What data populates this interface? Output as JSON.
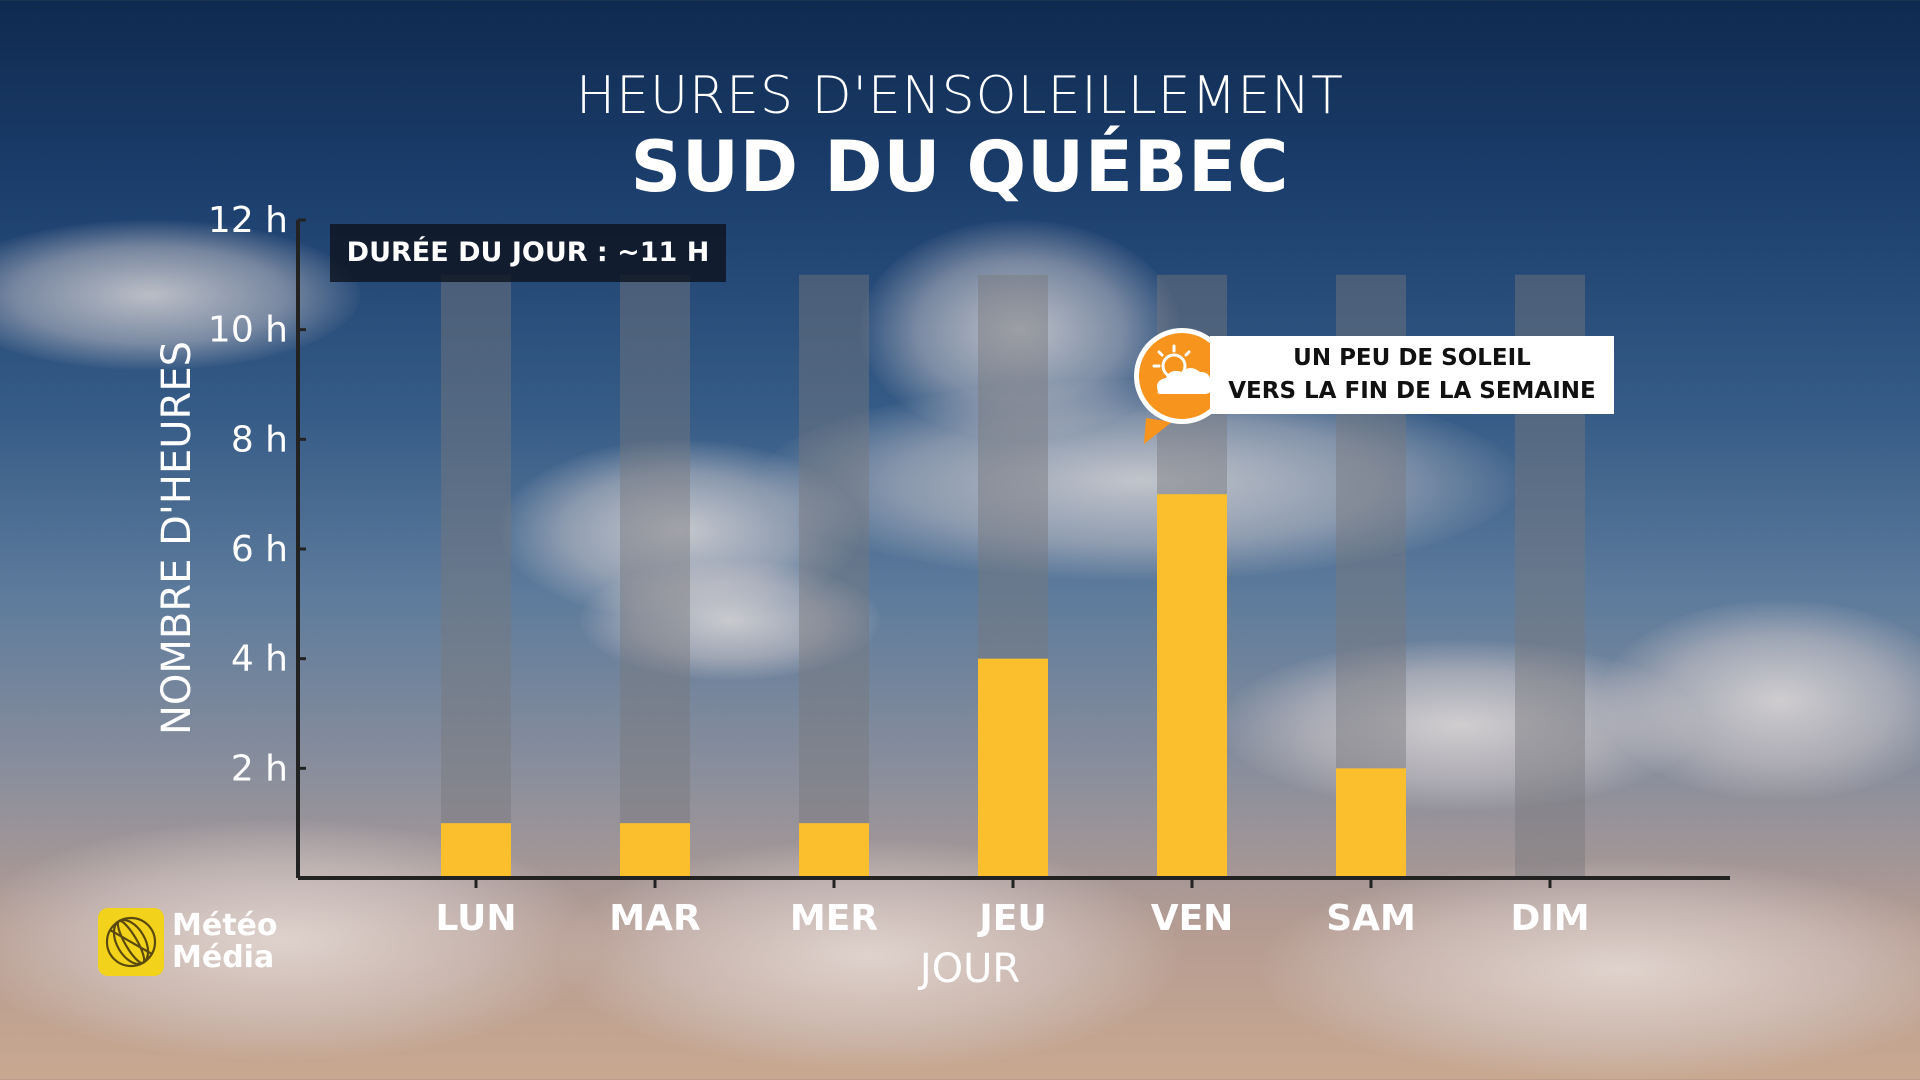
{
  "header": {
    "title": "HEURES D'ENSOLEILLEMENT",
    "subtitle": "SUD DU QUÉBEC"
  },
  "badge": {
    "day_length": "DURÉE DU JOUR : ~11 H"
  },
  "callout": {
    "line1": "UN PEU DE SOLEIL",
    "line2": "VERS LA FIN DE LA SEMAINE",
    "icon": "sun-cloud-icon",
    "accent": "#f7941d"
  },
  "logo": {
    "line1": "Météo",
    "line2": "Média",
    "icon": "meteomedia-logo-icon",
    "color": "#f2d21a"
  },
  "colors": {
    "bar": "#fbbf2d",
    "background_bar": "rgba(120,120,125,0.45)",
    "axis": "#222222",
    "text": "#ffffff"
  },
  "chart_data": {
    "type": "bar",
    "title": "HEURES D'ENSOLEILLEMENT",
    "subtitle": "SUD DU QUÉBEC",
    "xlabel": "JOUR",
    "ylabel": "NOMBRE D'HEURES",
    "categories": [
      "LUN",
      "MAR",
      "MER",
      "JEU",
      "VEN",
      "SAM",
      "DIM"
    ],
    "values": [
      1,
      1,
      1,
      4,
      7,
      2,
      0
    ],
    "background_values": [
      11,
      11,
      11,
      11,
      11,
      11,
      11
    ],
    "ylim": [
      0,
      12
    ],
    "yticks": [
      2,
      4,
      6,
      8,
      10,
      12
    ],
    "ytick_labels": [
      "2 h",
      "4 h",
      "6 h",
      "8 h",
      "10 h",
      "12 h"
    ],
    "grid": false,
    "legend": "none"
  }
}
